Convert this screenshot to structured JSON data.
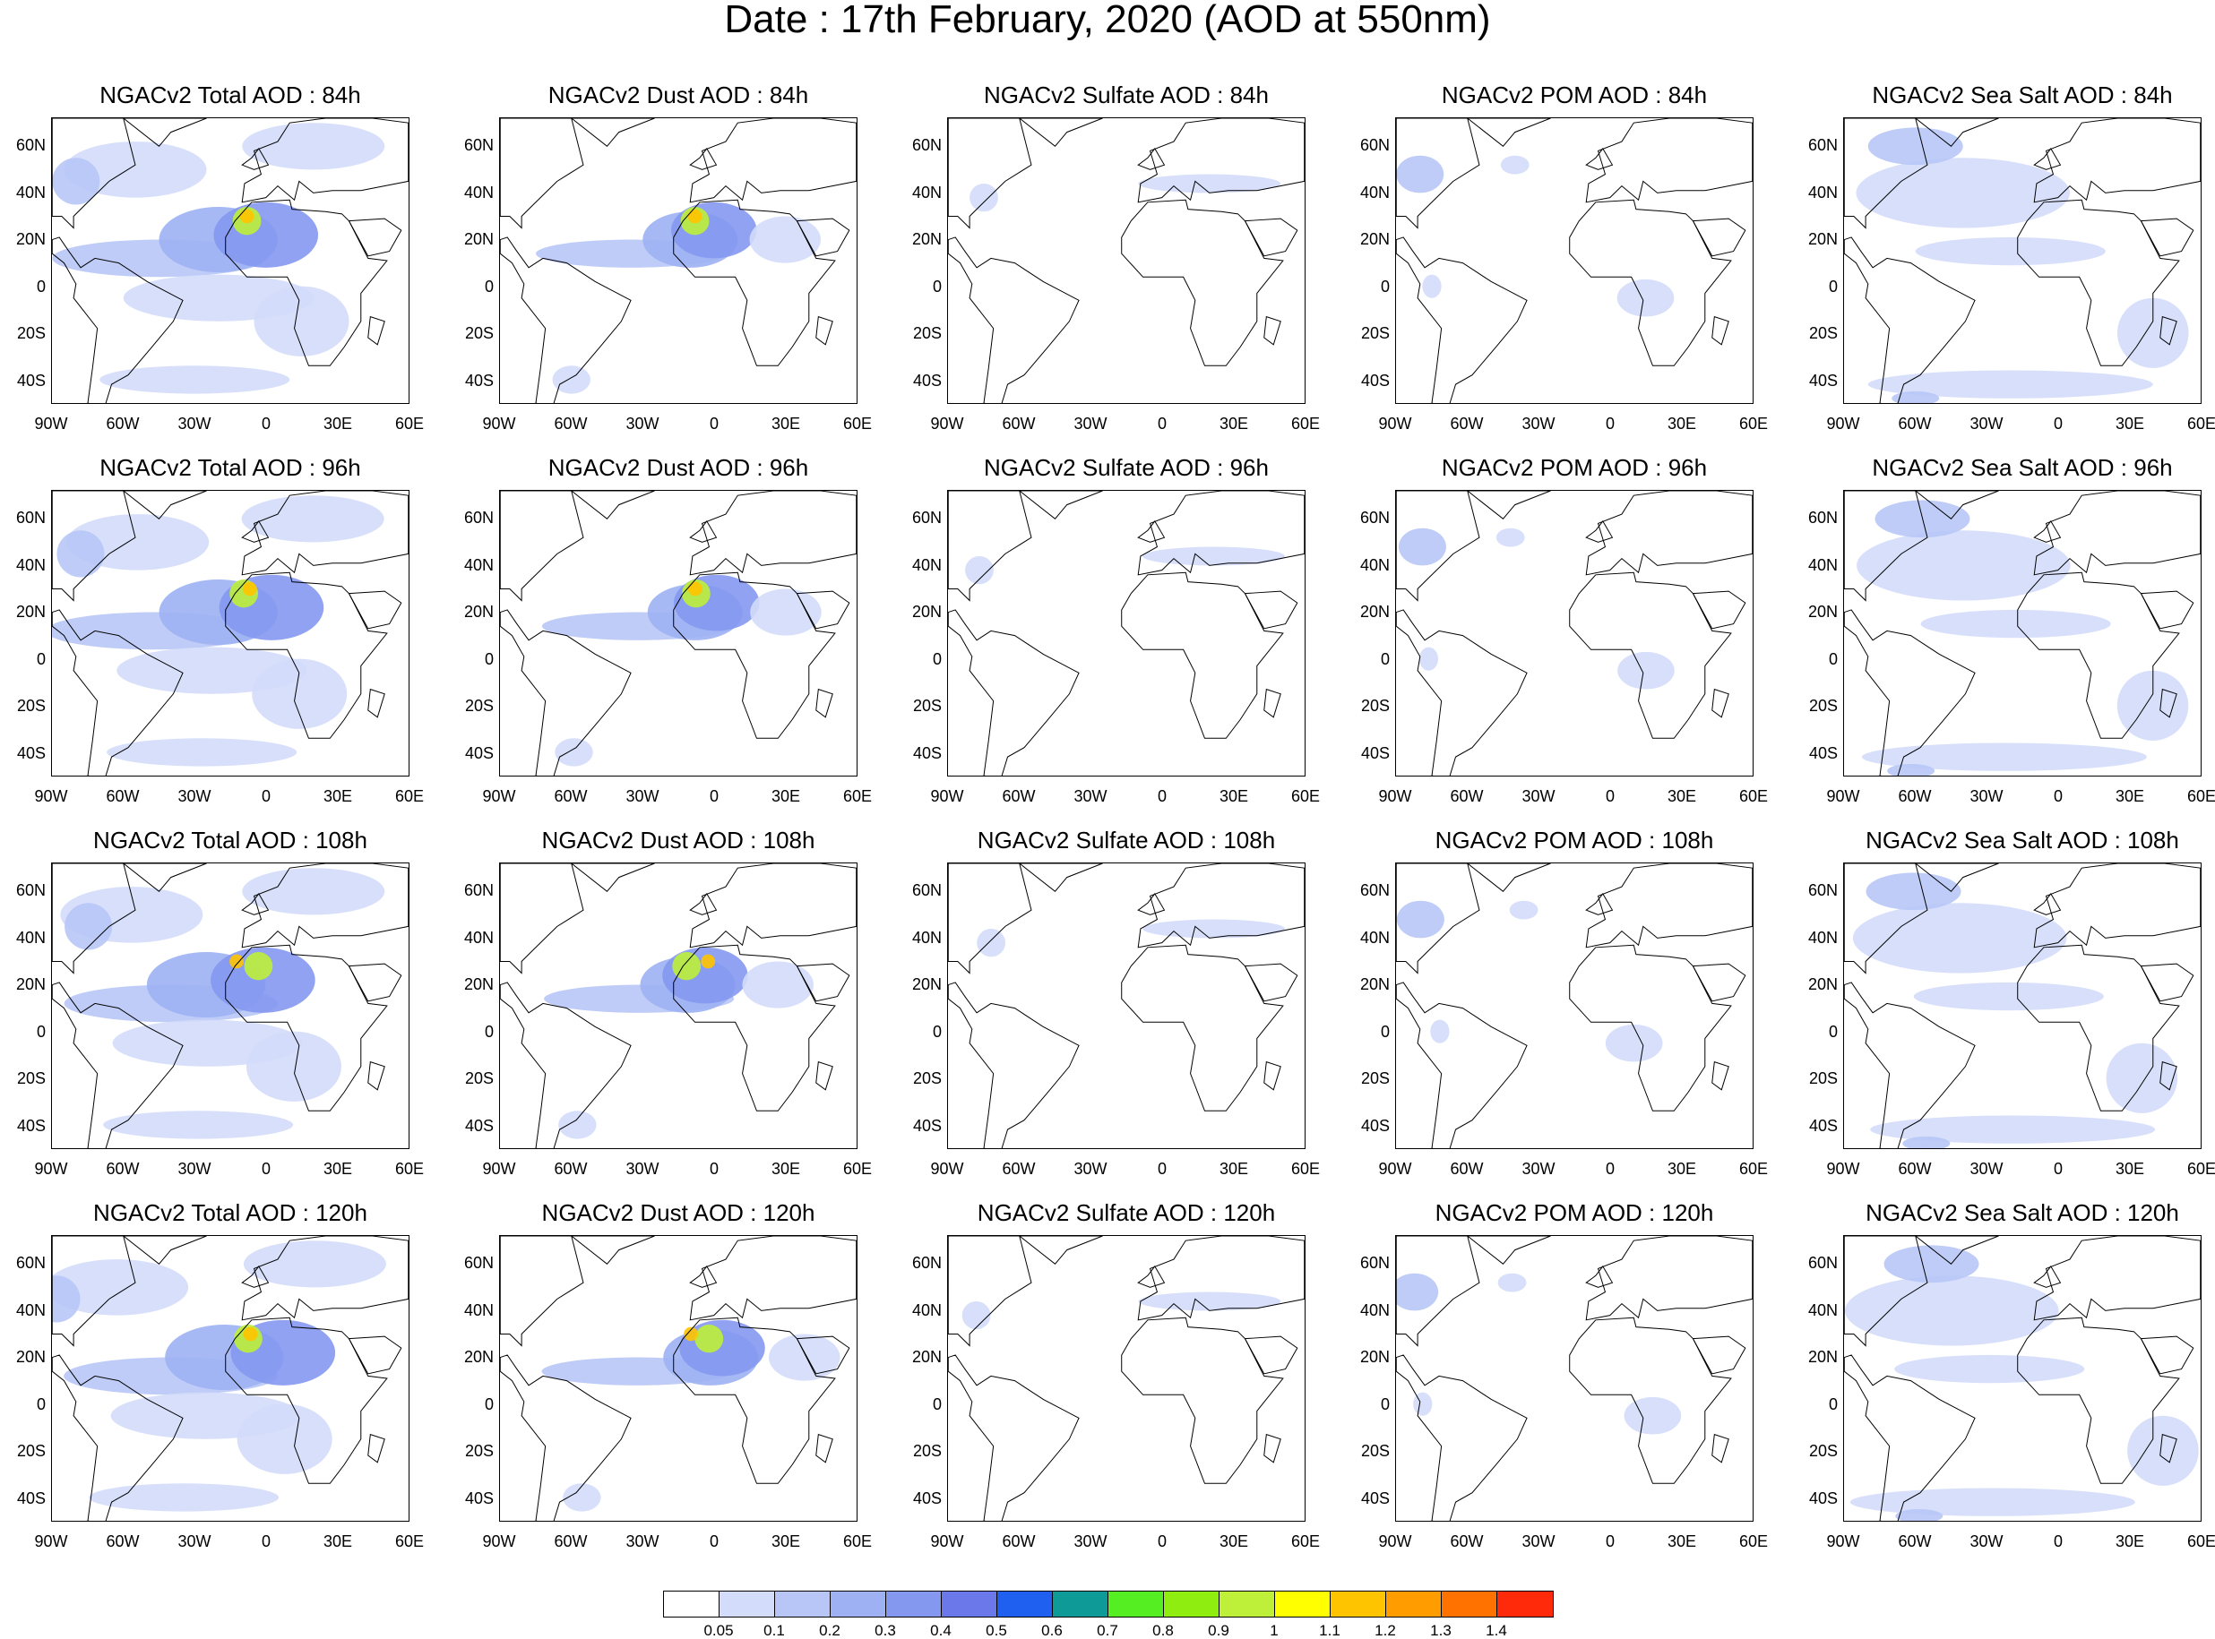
{
  "title": "Date : 17th February, 2020 (AOD at 550nm)",
  "panels": [
    [
      "NGACv2 Total AOD : 84h",
      "NGACv2 Dust AOD : 84h",
      "NGACv2 Sulfate AOD : 84h",
      "NGACv2 POM AOD : 84h",
      "NGACv2 Sea Salt AOD : 84h"
    ],
    [
      "NGACv2 Total AOD : 96h",
      "NGACv2 Dust AOD : 96h",
      "NGACv2 Sulfate AOD : 96h",
      "NGACv2 POM AOD : 96h",
      "NGACv2 Sea Salt AOD : 96h"
    ],
    [
      "NGACv2 Total AOD : 108h",
      "NGACv2 Dust AOD : 108h",
      "NGACv2 Sulfate AOD : 108h",
      "NGACv2 POM AOD : 108h",
      "NGACv2 Sea Salt AOD : 108h"
    ],
    [
      "NGACv2 Total AOD : 120h",
      "NGACv2 Dust AOD : 120h",
      "NGACv2 Sulfate AOD : 120h",
      "NGACv2 POM AOD : 120h",
      "NGACv2 Sea Salt  AOD : 120h"
    ]
  ],
  "lat_labels": [
    "60N",
    "40N",
    "20N",
    "0",
    "20S",
    "40S"
  ],
  "lon_labels": [
    "90W",
    "60W",
    "30W",
    "0",
    "30E",
    "60E"
  ],
  "colorbar": {
    "colors": [
      "#ffffff",
      "#d3dcfa",
      "#b7c6f6",
      "#9db1f3",
      "#8498f0",
      "#6a78ea",
      "#1f60f0",
      "#0e9a96",
      "#55ee22",
      "#8fee10",
      "#bef03a",
      "#ffff00",
      "#ffc400",
      "#ff9c00",
      "#ff7200",
      "#ff2a0a"
    ],
    "labels": [
      "0.05",
      "0.1",
      "0.2",
      "0.3",
      "0.4",
      "0.5",
      "0.6",
      "0.7",
      "0.8",
      "0.9",
      "1",
      "1.1",
      "1.2",
      "1.3",
      "1.4"
    ]
  }
}
